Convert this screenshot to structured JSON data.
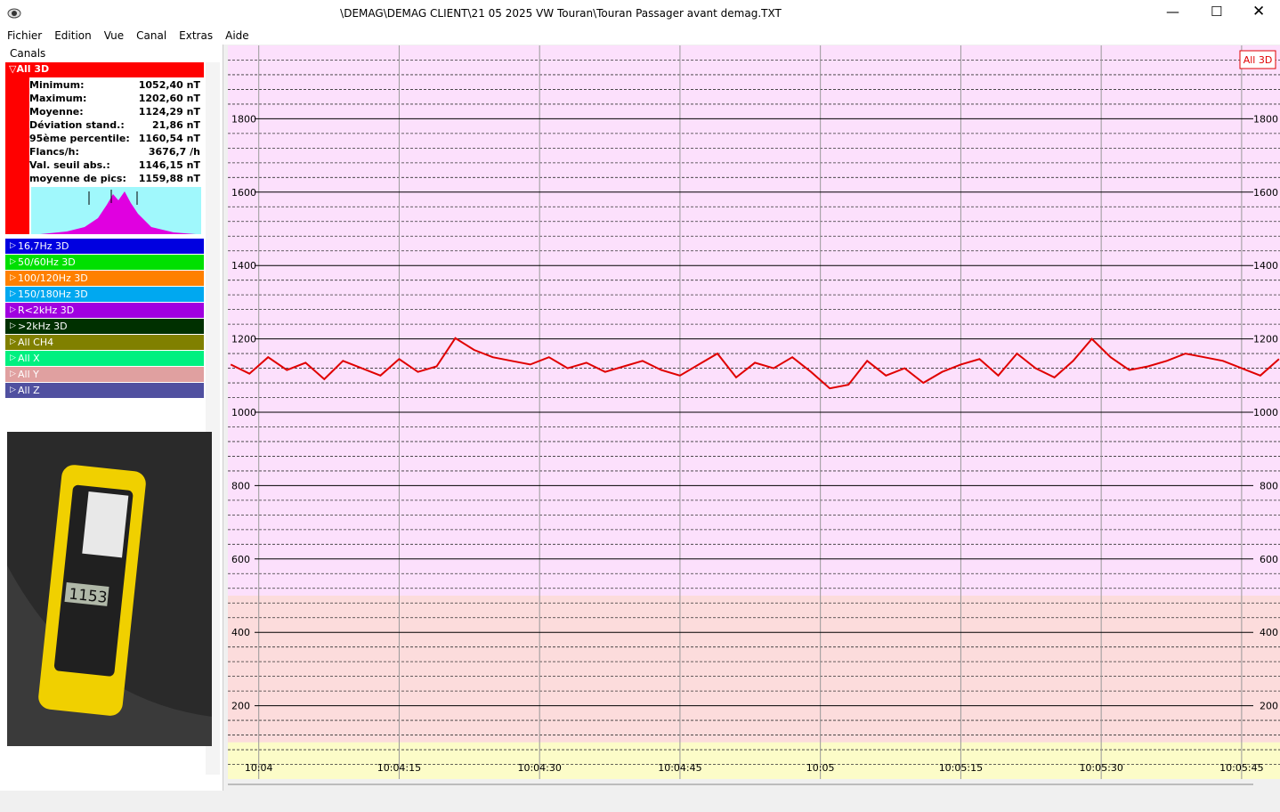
{
  "window": {
    "title": "\\DEMAG\\DEMAG CLIENT\\21 05 2025 VW Touran\\Touran Passager avant demag.TXT"
  },
  "menu": [
    "Fichier",
    "Edition",
    "Vue",
    "Canal",
    "Extras",
    "Aide"
  ],
  "panel": {
    "header": "Canals",
    "active": "All 3D",
    "stats": [
      [
        "Minimum:",
        "1052,40 nT"
      ],
      [
        "Maximum:",
        "1202,60 nT"
      ],
      [
        "Moyenne:",
        "1124,29 nT"
      ],
      [
        "Déviation stand.:",
        "21,86 nT"
      ],
      [
        "95ème percentile:",
        "1160,54 nT"
      ],
      [
        "Flancs/h:",
        "3676,7 /h"
      ],
      [
        "Val. seuil abs.:",
        "1146,15 nT"
      ],
      [
        "moyenne de pics:",
        "1159,88 nT"
      ]
    ],
    "channels": [
      {
        "name": "16,7Hz 3D",
        "color": "#0000e0"
      },
      {
        "name": "50/60Hz 3D",
        "color": "#00e000"
      },
      {
        "name": "100/120Hz 3D",
        "color": "#ff8000"
      },
      {
        "name": "150/180Hz 3D",
        "color": "#00a8f0"
      },
      {
        "name": "R<2kHz 3D",
        "color": "#a000e0"
      },
      {
        "name": ">2kHz 3D",
        "color": "#003000"
      },
      {
        "name": "All CH4",
        "color": "#808000"
      },
      {
        "name": "All X",
        "color": "#00f080"
      },
      {
        "name": "All Y",
        "color": "#e0a0a0"
      },
      {
        "name": "All Z",
        "color": "#5050a0"
      }
    ],
    "photo_display": "1153"
  },
  "chart_data": {
    "type": "line",
    "xlim": [
      36236.7,
      36349.1
    ],
    "xticks": [
      {
        "value": 36240,
        "label": "10:04"
      },
      {
        "value": 36255,
        "label": "10:04:15"
      },
      {
        "value": 36270,
        "label": "10:04:30"
      },
      {
        "value": 36285,
        "label": "10:04:45"
      },
      {
        "value": 36300,
        "label": "10:05"
      },
      {
        "value": 36315,
        "label": "10:05:15"
      },
      {
        "value": 36330,
        "label": "10:05:30"
      },
      {
        "value": 36345,
        "label": "10:05:45"
      }
    ],
    "ylim": [
      0,
      2000
    ],
    "yticks": [
      200,
      400,
      600,
      800,
      1000,
      1200,
      1400,
      1600,
      1800
    ],
    "yminorticks": [
      40,
      80,
      120,
      160,
      240,
      280,
      320,
      360,
      440,
      480,
      520,
      560,
      640,
      680,
      720,
      760,
      840,
      880,
      920,
      960,
      1040,
      1080,
      1120,
      1160,
      1240,
      1280,
      1320,
      1360,
      1440,
      1480,
      1520,
      1560,
      1640,
      1680,
      1720,
      1760,
      1840,
      1880,
      1920,
      1960
    ],
    "zones": [
      {
        "from": 500,
        "to": 2000,
        "color": "#fce0fc"
      },
      {
        "from": 100,
        "to": 500,
        "color": "#fcdcdc"
      },
      {
        "from": 0,
        "to": 100,
        "color": "#fcfcc8"
      }
    ],
    "grid": true,
    "series": [
      {
        "name": "All 3D",
        "color": "#e00000",
        "x": [
          36237,
          36239,
          36241,
          36243,
          36245,
          36247,
          36249,
          36251,
          36253,
          36255,
          36257,
          36259,
          36261,
          36263,
          36265,
          36267,
          36269,
          36271,
          36273,
          36275,
          36277,
          36279,
          36281,
          36283,
          36285,
          36287,
          36289,
          36291,
          36293,
          36295,
          36297,
          36299,
          36301,
          36303,
          36305,
          36307,
          36309,
          36311,
          36313,
          36315,
          36317,
          36319,
          36321,
          36323,
          36325,
          36327,
          36329,
          36331,
          36333,
          36335,
          36337,
          36339,
          36341,
          36343,
          36345,
          36347,
          36349
        ],
        "values": [
          1130,
          1105,
          1150,
          1115,
          1135,
          1090,
          1140,
          1120,
          1100,
          1145,
          1110,
          1125,
          1202,
          1170,
          1150,
          1140,
          1130,
          1150,
          1120,
          1135,
          1110,
          1125,
          1140,
          1115,
          1100,
          1130,
          1160,
          1095,
          1135,
          1120,
          1150,
          1110,
          1065,
          1075,
          1140,
          1100,
          1120,
          1080,
          1110,
          1130,
          1145,
          1100,
          1160,
          1120,
          1095,
          1140,
          1200,
          1150,
          1115,
          1125,
          1140,
          1160,
          1150,
          1140,
          1120,
          1100,
          1145
        ]
      }
    ]
  }
}
